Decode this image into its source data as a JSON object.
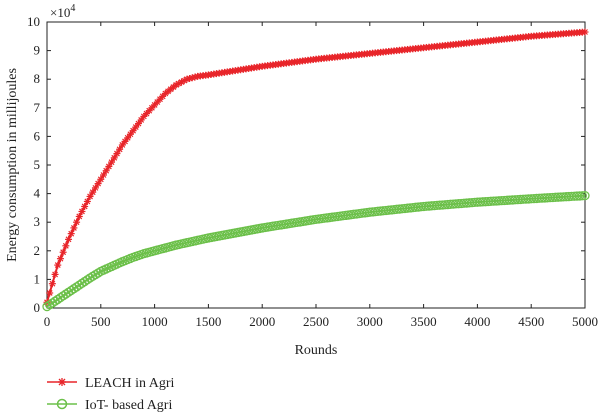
{
  "chart_data": {
    "type": "line",
    "xlabel": "Rounds",
    "ylabel": "Energy consumption in millijoules",
    "y_multiplier": "×10",
    "y_multiplier_exp": "4",
    "xlim": [
      0,
      5000
    ],
    "ylim": [
      0,
      10
    ],
    "x_ticks": [
      0,
      500,
      1000,
      1500,
      2000,
      2500,
      3000,
      3500,
      4000,
      4500,
      5000
    ],
    "y_ticks": [
      0,
      1,
      2,
      3,
      4,
      5,
      6,
      7,
      8,
      9,
      10
    ],
    "grid": false,
    "legend_position": "below",
    "series": [
      {
        "name": "LEACH in Agri",
        "color": "#e8252a",
        "marker": "asterisk",
        "x": [
          0,
          100,
          200,
          300,
          400,
          500,
          600,
          700,
          800,
          900,
          1000,
          1100,
          1200,
          1300,
          1400,
          1500,
          1750,
          2000,
          2500,
          3000,
          3500,
          4000,
          4500,
          5000
        ],
        "y": [
          0.2,
          1.5,
          2.4,
          3.2,
          3.9,
          4.5,
          5.1,
          5.7,
          6.2,
          6.7,
          7.1,
          7.5,
          7.8,
          8.0,
          8.1,
          8.15,
          8.3,
          8.45,
          8.7,
          8.9,
          9.1,
          9.3,
          9.5,
          9.65
        ]
      },
      {
        "name": "IoT- based Agri",
        "color": "#6cc04a",
        "marker": "circle",
        "x": [
          0,
          100,
          200,
          300,
          400,
          500,
          600,
          700,
          800,
          900,
          1000,
          1200,
          1500,
          2000,
          2500,
          3000,
          3500,
          4000,
          4500,
          5000
        ],
        "y": [
          0.05,
          0.3,
          0.55,
          0.8,
          1.05,
          1.28,
          1.45,
          1.62,
          1.77,
          1.9,
          2.0,
          2.2,
          2.45,
          2.8,
          3.1,
          3.35,
          3.55,
          3.7,
          3.82,
          3.93
        ]
      }
    ]
  }
}
